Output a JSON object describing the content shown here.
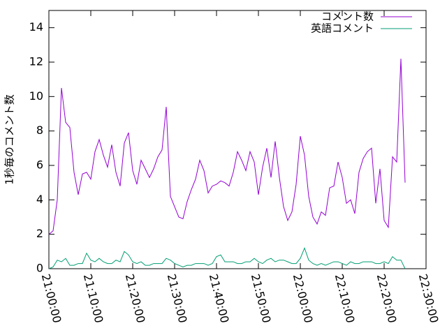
{
  "chart_data": {
    "type": "line",
    "ylabel": "1秒毎のコメント数",
    "x": [
      "21:00:00",
      "21:01:00",
      "21:02:00",
      "21:03:00",
      "21:04:00",
      "21:05:00",
      "21:06:00",
      "21:07:00",
      "21:08:00",
      "21:09:00",
      "21:10:00",
      "21:11:00",
      "21:12:00",
      "21:13:00",
      "21:14:00",
      "21:15:00",
      "21:16:00",
      "21:17:00",
      "21:18:00",
      "21:19:00",
      "21:20:00",
      "21:21:00",
      "21:22:00",
      "21:23:00",
      "21:24:00",
      "21:25:00",
      "21:26:00",
      "21:27:00",
      "21:28:00",
      "21:29:00",
      "21:30:00",
      "21:31:00",
      "21:32:00",
      "21:33:00",
      "21:34:00",
      "21:35:00",
      "21:36:00",
      "21:37:00",
      "21:38:00",
      "21:39:00",
      "21:40:00",
      "21:41:00",
      "21:42:00",
      "21:43:00",
      "21:44:00",
      "21:45:00",
      "21:46:00",
      "21:47:00",
      "21:48:00",
      "21:49:00",
      "21:50:00",
      "21:51:00",
      "21:52:00",
      "21:53:00",
      "21:54:00",
      "21:55:00",
      "21:56:00",
      "21:57:00",
      "21:58:00",
      "21:59:00",
      "22:00:00",
      "22:01:00",
      "22:02:00",
      "22:03:00",
      "22:04:00",
      "22:05:00",
      "22:06:00",
      "22:07:00",
      "22:08:00",
      "22:09:00",
      "22:10:00",
      "22:11:00",
      "22:12:00",
      "22:13:00",
      "22:14:00",
      "22:15:00",
      "22:16:00",
      "22:17:00",
      "22:18:00",
      "22:19:00",
      "22:20:00",
      "22:21:00",
      "22:22:00",
      "22:23:00",
      "22:24:00",
      "22:25:00"
    ],
    "series": [
      {
        "name": "コメント数",
        "color": "#9400d3",
        "values": [
          2.0,
          2.2,
          4.0,
          10.5,
          8.5,
          8.2,
          5.6,
          4.3,
          5.5,
          5.6,
          5.2,
          6.8,
          7.5,
          6.6,
          5.9,
          7.2,
          5.6,
          4.8,
          7.3,
          7.9,
          5.7,
          4.9,
          6.3,
          5.8,
          5.3,
          5.8,
          6.5,
          6.9,
          9.4,
          4.2,
          3.6,
          3.0,
          2.9,
          3.9,
          4.6,
          5.2,
          6.3,
          5.7,
          4.4,
          4.8,
          4.9,
          5.1,
          5.0,
          4.8,
          5.6,
          6.8,
          6.3,
          5.7,
          6.8,
          6.2,
          4.3,
          5.9,
          7.0,
          5.3,
          7.4,
          5.3,
          3.6,
          2.8,
          3.3,
          4.9,
          7.7,
          6.6,
          4.2,
          3.0,
          2.6,
          3.3,
          3.1,
          4.7,
          4.8,
          6.2,
          5.3,
          3.8,
          4.0,
          3.2,
          5.6,
          6.4,
          6.8,
          7.0,
          3.8,
          5.8,
          2.8,
          2.4,
          6.5,
          6.2,
          12.2,
          5.0
        ]
      },
      {
        "name": "英語コメント",
        "color": "#009e73",
        "values": [
          0,
          0.1,
          0.5,
          0.4,
          0.6,
          0.2,
          0.2,
          0.3,
          0.3,
          0.9,
          0.5,
          0.4,
          0.6,
          0.4,
          0.3,
          0.3,
          0.5,
          0.4,
          1.0,
          0.8,
          0.4,
          0.3,
          0.4,
          0.2,
          0.2,
          0.3,
          0.3,
          0.3,
          0.6,
          0.5,
          0.3,
          0.2,
          0.1,
          0.2,
          0.2,
          0.3,
          0.3,
          0.3,
          0.2,
          0.3,
          0.7,
          0.8,
          0.4,
          0.4,
          0.4,
          0.3,
          0.3,
          0.4,
          0.4,
          0.6,
          0.4,
          0.3,
          0.5,
          0.6,
          0.4,
          0.5,
          0.5,
          0.4,
          0.3,
          0.3,
          0.6,
          1.2,
          0.5,
          0.3,
          0.2,
          0.3,
          0.2,
          0.3,
          0.4,
          0.4,
          0.3,
          0.2,
          0.4,
          0.3,
          0.3,
          0.4,
          0.4,
          0.4,
          0.3,
          0.3,
          0.4,
          0.3,
          0.7,
          0.5,
          0.5,
          0
        ]
      }
    ],
    "xlim": [
      "21:00:00",
      "22:30:00"
    ],
    "xticks": [
      "21:00:00",
      "21:10:00",
      "21:20:00",
      "21:30:00",
      "21:40:00",
      "21:50:00",
      "22:00:00",
      "22:10:00",
      "22:20:00",
      "22:30:00"
    ],
    "ylim": [
      0,
      15
    ],
    "yticks": [
      0,
      2,
      4,
      6,
      8,
      10,
      12,
      14
    ],
    "legend": "top-right"
  }
}
